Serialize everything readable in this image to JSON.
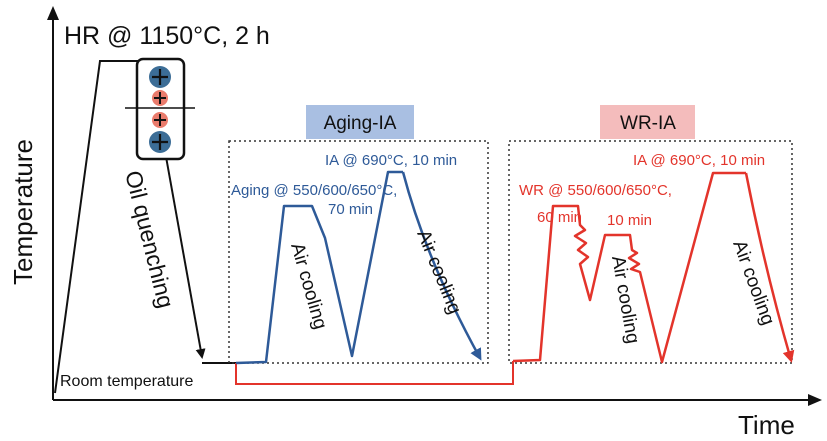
{
  "axes": {
    "y_label": "Temperature",
    "x_label": "Time"
  },
  "hr": {
    "label": "HR @ 1150°C, 2 h",
    "quench_label": "Oil quenching",
    "room_temperature": "Room temperature"
  },
  "aging_ia": {
    "title": "Aging-IA",
    "aging_label": "Aging @ 550/600/650°C,",
    "aging_time": "70 min",
    "ia_label": "IA @ 690°C, 10 min",
    "cool1": "Air cooling",
    "cool2": "Air cooling"
  },
  "wr_ia": {
    "title": "WR-IA",
    "ia_label": "IA @ 690°C, 10 min",
    "wr_label": "WR @ 550/600/650°C,",
    "time1": "60 min",
    "time2": "10 min",
    "cool1": "Air cooling",
    "cool2": "Air cooling"
  },
  "colors": {
    "blue": "#2e5a98",
    "red": "#e3342b",
    "aging_title_bg": "#a9bfe2",
    "wr_title_bg": "#f4bcbc",
    "badge_big": "#3c6d96",
    "badge_small": "#e97b6c"
  }
}
